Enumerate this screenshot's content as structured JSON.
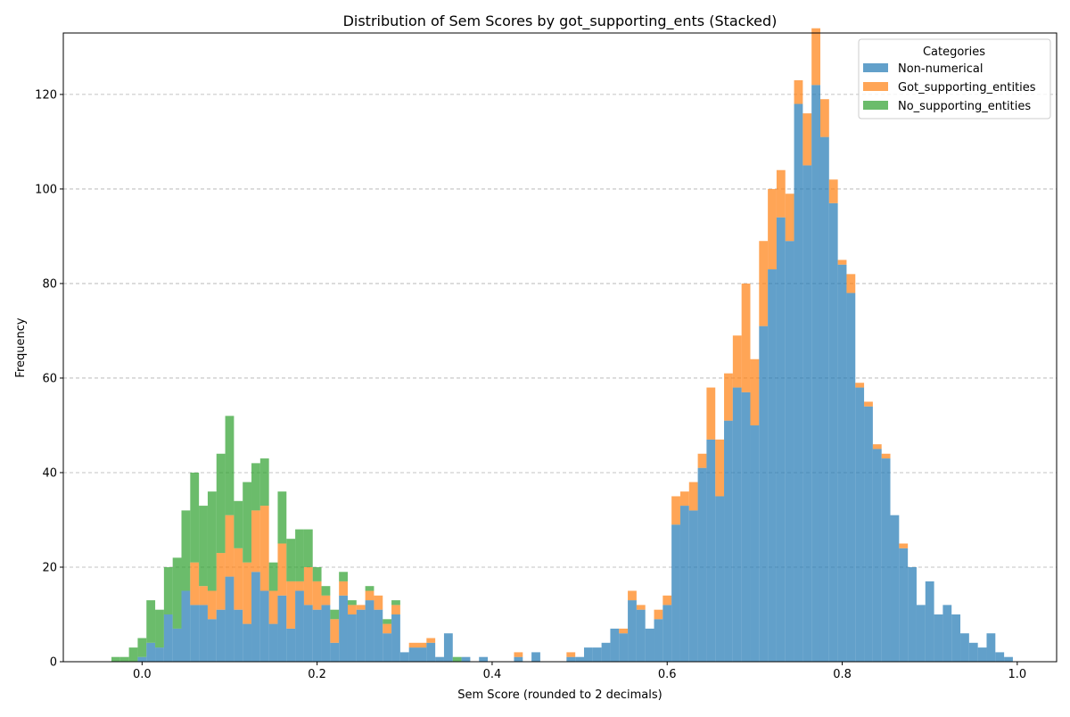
{
  "chart_data": {
    "type": "bar",
    "stacked": true,
    "title": "Distribution of Sem Scores by got_supporting_ents (Stacked)",
    "xlabel": "Sem Score (rounded to 2 decimals)",
    "ylabel": "Frequency",
    "xlim": [
      -0.09,
      1.045
    ],
    "ylim": [
      0,
      133
    ],
    "bin_width": 0.01,
    "xticks": [
      0.0,
      0.2,
      0.4,
      0.6,
      0.8,
      1.0
    ],
    "xtick_labels": [
      "0.0",
      "0.2",
      "0.4",
      "0.6",
      "0.8",
      "1.0"
    ],
    "yticks": [
      0,
      20,
      40,
      60,
      80,
      100,
      120
    ],
    "ytick_labels": [
      "0",
      "20",
      "40",
      "60",
      "80",
      "100",
      "120"
    ],
    "grid": "y-dashed",
    "legend": {
      "title": "Categories",
      "position": "top-right"
    },
    "colors": {
      "non_numerical": "#1f77b4",
      "got_supporting": "#ff7f0e",
      "no_supporting": "#2ca02c",
      "grid": "#b0b0b0"
    },
    "bar_opacity": 0.7,
    "bins_start": -0.03,
    "series": [
      {
        "name": "Non-numerical",
        "values": [
          0,
          0,
          0,
          1,
          4,
          3,
          10,
          7,
          15,
          12,
          12,
          9,
          11,
          18,
          11,
          8,
          19,
          15,
          8,
          14,
          7,
          15,
          12,
          11,
          12,
          4,
          14,
          10,
          11,
          13,
          11,
          6,
          10,
          2,
          3,
          3,
          4,
          1,
          6,
          0,
          1,
          0,
          1,
          0,
          0,
          0,
          1,
          0,
          2,
          0,
          0,
          0,
          1,
          1,
          3,
          3,
          4,
          7,
          6,
          13,
          11,
          7,
          9,
          12,
          29,
          33,
          32,
          41,
          47,
          35,
          51,
          58,
          57,
          50,
          71,
          83,
          94,
          89,
          118,
          105,
          122,
          111,
          97,
          84,
          78,
          58,
          54,
          45,
          43,
          31,
          24,
          20,
          12,
          17,
          10,
          12,
          10,
          6,
          4,
          3,
          6,
          2,
          1
        ]
      },
      {
        "name": "Got_supporting_entities",
        "values": [
          0,
          0,
          0,
          0,
          0,
          0,
          0,
          0,
          0,
          9,
          4,
          6,
          12,
          13,
          13,
          13,
          13,
          18,
          7,
          11,
          10,
          2,
          8,
          6,
          2,
          5,
          3,
          2,
          1,
          2,
          3,
          2,
          2,
          0,
          1,
          1,
          1,
          0,
          0,
          0,
          0,
          0,
          0,
          0,
          0,
          0,
          1,
          0,
          0,
          0,
          0,
          0,
          1,
          0,
          0,
          0,
          0,
          0,
          1,
          2,
          1,
          0,
          2,
          2,
          6,
          3,
          6,
          3,
          11,
          12,
          10,
          11,
          23,
          14,
          18,
          17,
          10,
          10,
          5,
          11,
          12,
          8,
          5,
          1,
          4,
          1,
          1,
          1,
          1,
          0,
          1,
          0,
          0,
          0,
          0,
          0,
          0,
          0,
          0,
          0,
          0,
          0,
          0
        ]
      },
      {
        "name": "No_supporting_entities",
        "values": [
          1,
          1,
          3,
          4,
          9,
          8,
          10,
          15,
          17,
          19,
          17,
          21,
          21,
          21,
          10,
          17,
          10,
          10,
          6,
          11,
          9,
          11,
          8,
          3,
          2,
          2,
          2,
          1,
          0,
          1,
          0,
          1,
          1,
          0,
          0,
          0,
          0,
          0,
          0,
          1,
          0,
          0,
          0,
          0,
          0,
          0,
          0,
          0,
          0,
          0,
          0,
          0,
          0,
          0,
          0,
          0,
          0,
          0,
          0,
          0,
          0,
          0,
          0,
          0,
          0,
          0,
          0,
          0,
          0,
          0,
          0,
          0,
          0,
          0,
          0,
          0,
          0,
          0,
          0,
          0,
          0,
          0,
          0,
          0,
          0,
          0,
          0,
          0,
          0,
          0,
          0,
          0,
          0,
          0,
          0,
          0,
          0,
          0,
          0,
          0,
          0,
          0,
          0
        ]
      }
    ]
  }
}
